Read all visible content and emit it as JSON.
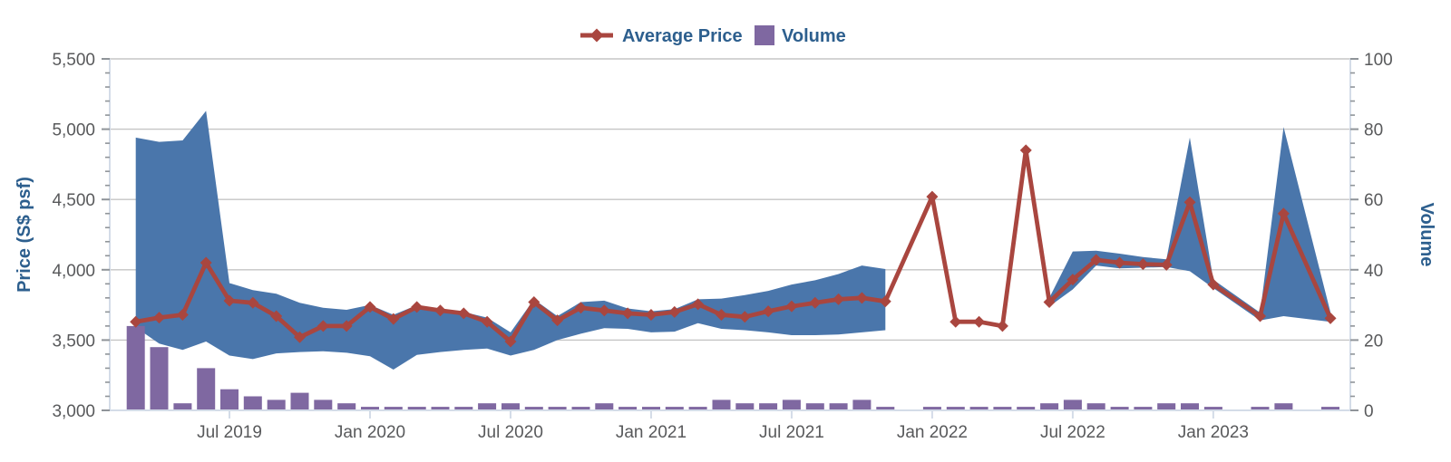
{
  "legend": {
    "average_price_label": "Average Price",
    "volume_label": "Volume"
  },
  "y_left": {
    "title": "Price (S$ psf)",
    "tick_labels": [
      "3,000",
      "3,500",
      "4,000",
      "4,500",
      "5,000",
      "5,500"
    ],
    "tick_values": [
      3000,
      3500,
      4000,
      4500,
      5000,
      5500
    ],
    "min": 3000,
    "max": 5500,
    "minor_step": 100
  },
  "y_right": {
    "title": "Volume",
    "tick_labels": [
      "0",
      "20",
      "40",
      "60",
      "80",
      "100"
    ],
    "tick_values": [
      0,
      20,
      40,
      60,
      80,
      100
    ],
    "min": 0,
    "max": 100,
    "minor_step": 4
  },
  "x_axis": {
    "tick_months": [
      "2019-07",
      "2020-01",
      "2020-07",
      "2021-01",
      "2021-07",
      "2022-01",
      "2022-07",
      "2023-01"
    ],
    "tick_labels": [
      "Jul 2019",
      "Jan 2020",
      "Jul 2020",
      "Jan 2021",
      "Jul 2021",
      "Jan 2022",
      "Jul 2022",
      "Jan 2023"
    ]
  },
  "colors": {
    "average_price_line": "#a9463f",
    "price_range_band": "#4a76ab",
    "volume_bar": "#7f68a1",
    "legend_text": "#2d5f8e",
    "axis_title_text": "#2d5f8e",
    "tick_label_text": "#58595b",
    "gridline": "#c5c5c5",
    "spine": "#d4dce8",
    "tick_mark": "#8f9499",
    "background": "#ffffff"
  },
  "chart_data": {
    "type": "line+area+bar",
    "title": "",
    "x_unit": "month",
    "grid": "horizontal-only",
    "legend_position": "top-center",
    "ylim_left": [
      3000,
      5500
    ],
    "ylim_right": [
      0,
      100
    ],
    "months": [
      "2019-03",
      "2019-04",
      "2019-05",
      "2019-06",
      "2019-07",
      "2019-08",
      "2019-09",
      "2019-10",
      "2019-11",
      "2019-12",
      "2020-01",
      "2020-02",
      "2020-03",
      "2020-04",
      "2020-05",
      "2020-06",
      "2020-07",
      "2020-08",
      "2020-09",
      "2020-10",
      "2020-11",
      "2020-12",
      "2021-01",
      "2021-02",
      "2021-03",
      "2021-04",
      "2021-05",
      "2021-06",
      "2021-07",
      "2021-08",
      "2021-09",
      "2021-10",
      "2021-11",
      "2021-12",
      "2022-01",
      "2022-02",
      "2022-03",
      "2022-04",
      "2022-05",
      "2022-06",
      "2022-07",
      "2022-08",
      "2022-09",
      "2022-10",
      "2022-11",
      "2022-12",
      "2023-01",
      "2023-02",
      "2023-03",
      "2023-04",
      "2023-05",
      "2023-06"
    ],
    "series": [
      {
        "name": "Average Price",
        "type": "line",
        "axis": "left",
        "marker": "diamond",
        "values": [
          3630,
          3660,
          3680,
          4050,
          3780,
          3765,
          3670,
          3520,
          3600,
          3600,
          3735,
          3650,
          3735,
          3710,
          3690,
          3630,
          3490,
          3770,
          3640,
          3730,
          3710,
          3690,
          3680,
          3700,
          3755,
          3680,
          3665,
          3705,
          3740,
          3765,
          3790,
          3800,
          3775,
          null,
          4520,
          3630,
          3630,
          3600,
          4850,
          3770,
          3930,
          4070,
          4050,
          4040,
          4035,
          4480,
          3895,
          null,
          3670,
          4400,
          null,
          3655
        ]
      },
      {
        "name": "Price Range Low",
        "type": "area-lower-bound",
        "axis": "left",
        "values": [
          3590,
          3475,
          3430,
          3490,
          3390,
          3365,
          3405,
          3415,
          3420,
          3410,
          3385,
          3290,
          3395,
          3415,
          3430,
          3440,
          3390,
          3430,
          3500,
          3545,
          3585,
          3580,
          3555,
          3560,
          3620,
          3580,
          3570,
          3555,
          3535,
          3535,
          3540,
          3555,
          3570,
          null,
          4520,
          3630,
          3630,
          3600,
          4850,
          3740,
          3860,
          4030,
          4010,
          4015,
          4020,
          3990,
          3870,
          null,
          3640,
          3670,
          null,
          3630
        ]
      },
      {
        "name": "Price Range High",
        "type": "area-upper-bound",
        "axis": "left",
        "values": [
          4940,
          4910,
          4920,
          5130,
          3905,
          3855,
          3830,
          3765,
          3730,
          3715,
          3750,
          3680,
          3748,
          3722,
          3700,
          3660,
          3555,
          3790,
          3670,
          3770,
          3780,
          3725,
          3705,
          3720,
          3790,
          3795,
          3820,
          3850,
          3895,
          3925,
          3970,
          4030,
          4005,
          null,
          4520,
          3630,
          3630,
          3600,
          4850,
          3800,
          4130,
          4135,
          4115,
          4090,
          4075,
          4940,
          3930,
          null,
          3695,
          5015,
          null,
          3700
        ]
      },
      {
        "name": "Volume",
        "type": "bar",
        "axis": "right",
        "values": [
          24,
          18,
          2,
          12,
          6,
          4,
          3,
          5,
          3,
          2,
          1,
          1,
          1,
          1,
          1,
          2,
          2,
          1,
          1,
          1,
          2,
          1,
          1,
          1,
          1,
          3,
          2,
          2,
          3,
          2,
          2,
          3,
          1,
          0,
          1,
          1,
          1,
          1,
          1,
          2,
          3,
          2,
          1,
          1,
          2,
          2,
          1,
          0,
          1,
          2,
          0,
          1
        ]
      }
    ]
  }
}
